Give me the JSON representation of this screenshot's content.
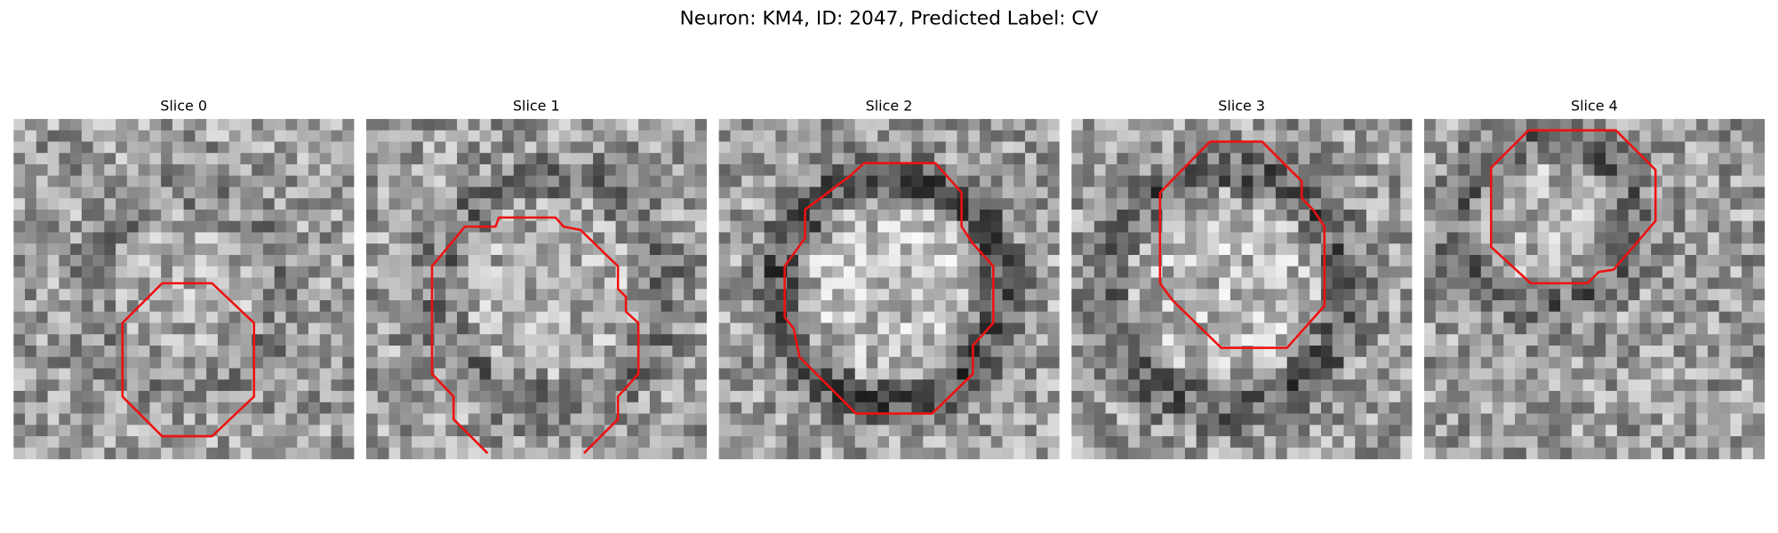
{
  "title": "Neuron: KM4, ID: 2047, Predicted Label: CV",
  "panels": [
    {
      "title": "Slice 0"
    },
    {
      "title": "Slice 1"
    },
    {
      "title": "Slice 2"
    },
    {
      "title": "Slice 3"
    },
    {
      "title": "Slice 4"
    }
  ]
}
